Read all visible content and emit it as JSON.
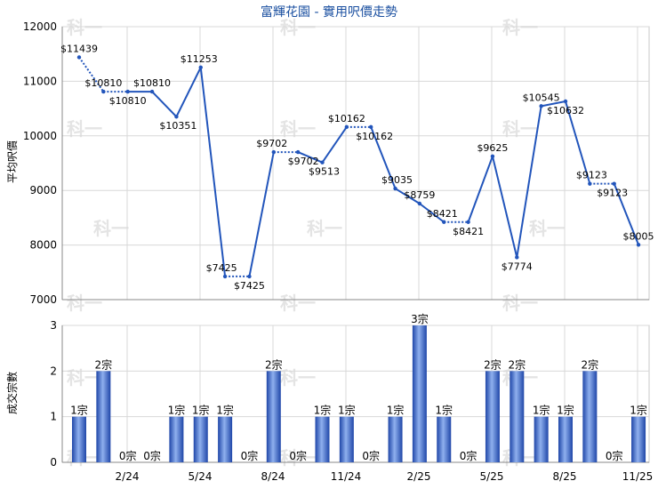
{
  "chart_data": [
    {
      "type": "line",
      "title": "富輝花園 - 實用呎價走勢",
      "ylabel": "平均呎價",
      "ylim": [
        7000,
        12000
      ],
      "y_ticks": [
        "7000",
        "8000",
        "9000",
        "10000",
        "11000",
        "12000"
      ],
      "x_ticks": [
        "2/24",
        "5/24",
        "8/24",
        "11/24",
        "2/25",
        "5/25",
        "8/25",
        "11/25"
      ],
      "points": [
        {
          "value": 11439,
          "label": "$11439",
          "filled": true
        },
        {
          "value": 10810,
          "label": "$10810",
          "filled": false
        },
        {
          "value": 10810,
          "label": "$10810",
          "filled": false
        },
        {
          "value": 10810,
          "label": "$10810",
          "filled": true
        },
        {
          "value": 10351,
          "label": "$10351",
          "filled": true
        },
        {
          "value": 11253,
          "label": "$11253",
          "filled": true
        },
        {
          "value": 7425,
          "label": "$7425",
          "filled": true
        },
        {
          "value": 7425,
          "label": "$7425",
          "filled": false
        },
        {
          "value": 9702,
          "label": "$9702",
          "filled": true
        },
        {
          "value": 9702,
          "label": "$9702",
          "filled": false
        },
        {
          "value": 9513,
          "label": "$9513",
          "filled": true
        },
        {
          "value": 10162,
          "label": "$10162",
          "filled": true
        },
        {
          "value": 10162,
          "label": "$10162",
          "filled": false
        },
        {
          "value": 9035,
          "label": "$9035",
          "filled": true
        },
        {
          "value": 8759,
          "label": "$8759",
          "filled": true
        },
        {
          "value": 8421,
          "label": "$8421",
          "filled": true
        },
        {
          "value": 8421,
          "label": "$8421",
          "filled": false
        },
        {
          "value": 9625,
          "label": "$9625",
          "filled": true
        },
        {
          "value": 7774,
          "label": "$7774",
          "filled": true
        },
        {
          "value": 10545,
          "label": "$10545",
          "filled": true
        },
        {
          "value": 10632,
          "label": "$10632",
          "filled": true
        },
        {
          "value": 9123,
          "label": "$9123",
          "filled": true
        },
        {
          "value": 9123,
          "label": "$9123",
          "filled": false
        },
        {
          "value": 8005,
          "label": "$8005",
          "filled": true
        }
      ],
      "color": "#2255bb"
    },
    {
      "type": "bar",
      "ylabel": "成交宗數",
      "ylim": [
        0,
        3
      ],
      "y_ticks": [
        "0",
        "1",
        "2",
        "3"
      ],
      "x_ticks": [
        "2/24",
        "5/24",
        "8/24",
        "11/24",
        "2/25",
        "5/25",
        "8/25",
        "11/25"
      ],
      "values": [
        1,
        2,
        0,
        0,
        1,
        1,
        1,
        0,
        2,
        0,
        1,
        1,
        0,
        1,
        3,
        1,
        0,
        2,
        2,
        1,
        1,
        2,
        0,
        1
      ],
      "labels": [
        "1宗",
        "2宗",
        "0宗",
        "0宗",
        "1宗",
        "1宗",
        "1宗",
        "0宗",
        "2宗",
        "0宗",
        "1宗",
        "1宗",
        "0宗",
        "1宗",
        "3宗",
        "1宗",
        "0宗",
        "2宗",
        "2宗",
        "1宗",
        "1宗",
        "2宗",
        "0宗",
        "1宗"
      ],
      "color": "#2255bb"
    }
  ],
  "watermark_text": "科一"
}
